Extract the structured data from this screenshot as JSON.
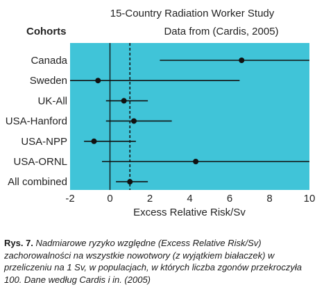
{
  "chart_data": {
    "type": "forest",
    "title": "15-Country Radiation Worker Study",
    "subtitle": "Data from (Cardis, 2005)",
    "group_header": "Cohorts",
    "xlabel": "Excess Relative Risk/Sv",
    "xlim": [
      -2,
      10
    ],
    "x_ticks": [
      -2,
      0,
      2,
      4,
      6,
      8,
      10
    ],
    "reference_lines": [
      {
        "style": "solid",
        "x": 0
      },
      {
        "style": "dashed",
        "x": 1
      }
    ],
    "plot_background": "#40c4d8",
    "categories": [
      "Canada",
      "Sweden",
      "UK-All",
      "USA-Hanford",
      "USA-NPP",
      "USA-ORNL",
      "All combined"
    ],
    "estimates": [
      6.6,
      -0.6,
      0.7,
      1.2,
      -0.8,
      4.3,
      1.0
    ],
    "ci_lower": [
      2.5,
      -2.0,
      -0.2,
      -0.2,
      -1.3,
      -0.4,
      0.3
    ],
    "ci_upper": [
      10.0,
      6.5,
      1.9,
      3.1,
      1.3,
      10.0,
      1.9
    ]
  },
  "caption": {
    "label": "Rys. 7.",
    "text": " Nadmiarowe ryzyko względne (Excess Relative Risk/Sv) zachorowalności na wszystkie nowotwory (z wyjątkiem białaczek) w przeliczeniu na 1 Sv, w populacjach, w których liczba zgonów przekroczyła 100. Dane według Cardis i in. (2005)"
  }
}
